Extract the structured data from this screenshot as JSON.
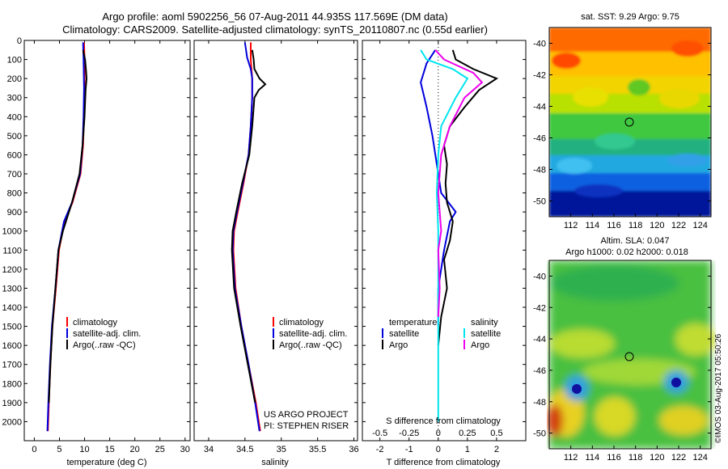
{
  "header": {
    "line1": "Argo profile: aoml 5902256_56 07-Aug-2011 44.935S 117.569E (DM data)",
    "line2": "Climatology: CARS2009. Satellite-adjusted climatology: synTS_20110807.nc (0.55d earlier)"
  },
  "colors": {
    "climatology": "#ff0000",
    "satellite": "#0000dd",
    "argo": "#000000",
    "cyan": "#00e5ee",
    "magenta": "#ee00ee"
  },
  "panel1": {
    "xlabel": "temperature (deg C)",
    "legend": [
      "climatology",
      "satellite-adj. clim.",
      "Argo(..raw -QC)"
    ]
  },
  "panel2": {
    "xlabel": "salinity",
    "legend": [
      "climatology",
      "satellite-adj. clim.",
      "Argo(..raw -QC)"
    ],
    "note1": "US ARGO PROJECT",
    "note2": "PI: STEPHEN RISER"
  },
  "panel3": {
    "top_label": "S difference from climatology",
    "xlabel": "T difference from climatology",
    "legend_t_title": "temperature",
    "legend_s_title": "salinity",
    "legend_sat": "satellite",
    "legend_argo": "Argo"
  },
  "map1": {
    "title": "sat. SST: 9.29 Argo: 9.75"
  },
  "map2": {
    "title1": "Altim. SLA: 0.047",
    "title2": "Argo h1000: 0.02 h2000: 0.018"
  },
  "stamp": "©IMOS 03-Aug-2017 05:50:26",
  "chart_data": [
    {
      "type": "line",
      "title": "",
      "xlabel": "temperature (deg C)",
      "ylabel": "",
      "xlim": [
        -2,
        31
      ],
      "ylim": [
        2100,
        0
      ],
      "x_ticks": [
        0,
        5,
        10,
        15,
        20,
        25,
        30
      ],
      "y_ticks": [
        0,
        100,
        200,
        300,
        400,
        500,
        600,
        700,
        800,
        900,
        1000,
        1100,
        1200,
        1300,
        1400,
        1500,
        1600,
        1700,
        1800,
        1900,
        2000
      ],
      "series": [
        {
          "name": "climatology",
          "color": "#ff0000",
          "points": [
            [
              9.9,
              10
            ],
            [
              10.0,
              100
            ],
            [
              10.0,
              250
            ],
            [
              9.9,
              400
            ],
            [
              9.7,
              550
            ],
            [
              9.2,
              700
            ],
            [
              7.6,
              850
            ],
            [
              6.0,
              950
            ],
            [
              4.9,
              1100
            ],
            [
              4.3,
              1300
            ],
            [
              3.6,
              1500
            ],
            [
              3.2,
              1700
            ],
            [
              2.9,
              1900
            ],
            [
              2.7,
              2050
            ]
          ]
        },
        {
          "name": "satellite-adj. clim.",
          "color": "#0000dd",
          "points": [
            [
              9.7,
              10
            ],
            [
              9.8,
              100
            ],
            [
              9.9,
              250
            ],
            [
              9.8,
              400
            ],
            [
              9.6,
              550
            ],
            [
              9.1,
              700
            ],
            [
              7.5,
              850
            ],
            [
              5.9,
              950
            ],
            [
              4.8,
              1100
            ],
            [
              4.2,
              1300
            ],
            [
              3.5,
              1500
            ],
            [
              3.1,
              1700
            ],
            [
              2.8,
              1900
            ],
            [
              2.6,
              2050
            ]
          ]
        },
        {
          "name": "Argo(..raw -QC)",
          "color": "#000000",
          "points": [
            [
              9.7,
              50
            ],
            [
              10.1,
              100
            ],
            [
              10.3,
              160
            ],
            [
              10.4,
              200
            ],
            [
              10.2,
              260
            ],
            [
              10.0,
              400
            ],
            [
              9.6,
              550
            ],
            [
              9.0,
              700
            ],
            [
              7.5,
              850
            ],
            [
              5.7,
              1000
            ],
            [
              4.8,
              1100
            ],
            [
              4.2,
              1300
            ],
            [
              3.6,
              1500
            ],
            [
              3.2,
              1700
            ],
            [
              2.9,
              1900
            ]
          ]
        }
      ]
    },
    {
      "type": "line",
      "title": "",
      "xlabel": "salinity",
      "ylabel": "",
      "xlim": [
        33.8,
        36.05
      ],
      "ylim": [
        2100,
        0
      ],
      "x_ticks": [
        34,
        34.5,
        35,
        35.5,
        36
      ],
      "series": [
        {
          "name": "climatology",
          "color": "#ff0000",
          "points": [
            [
              34.58,
              10
            ],
            [
              34.58,
              100
            ],
            [
              34.6,
              200
            ],
            [
              34.6,
              300
            ],
            [
              34.58,
              450
            ],
            [
              34.55,
              600
            ],
            [
              34.48,
              750
            ],
            [
              34.4,
              900
            ],
            [
              34.35,
              1000
            ],
            [
              34.34,
              1100
            ],
            [
              34.37,
              1300
            ],
            [
              34.45,
              1500
            ],
            [
              34.55,
              1700
            ],
            [
              34.65,
              1900
            ],
            [
              34.71,
              2050
            ]
          ]
        },
        {
          "name": "satellite-adj. clim.",
          "color": "#0000dd",
          "points": [
            [
              34.5,
              10
            ],
            [
              34.53,
              90
            ],
            [
              34.58,
              150
            ],
            [
              34.6,
              200
            ],
            [
              34.6,
              300
            ],
            [
              34.58,
              450
            ],
            [
              34.55,
              600
            ],
            [
              34.47,
              750
            ],
            [
              34.39,
              900
            ],
            [
              34.34,
              1000
            ],
            [
              34.33,
              1100
            ],
            [
              34.36,
              1300
            ],
            [
              34.45,
              1500
            ],
            [
              34.55,
              1700
            ],
            [
              34.64,
              1900
            ],
            [
              34.7,
              2050
            ]
          ]
        },
        {
          "name": "Argo(..raw -QC)",
          "color": "#000000",
          "points": [
            [
              34.6,
              50
            ],
            [
              34.62,
              100
            ],
            [
              34.63,
              150
            ],
            [
              34.7,
              200
            ],
            [
              34.78,
              230
            ],
            [
              34.69,
              260
            ],
            [
              34.63,
              300
            ],
            [
              34.6,
              450
            ],
            [
              34.56,
              600
            ],
            [
              34.46,
              750
            ],
            [
              34.38,
              900
            ],
            [
              34.33,
              1000
            ],
            [
              34.32,
              1100
            ],
            [
              34.35,
              1300
            ],
            [
              34.44,
              1500
            ],
            [
              34.54,
              1700
            ],
            [
              34.64,
              1900
            ]
          ]
        }
      ]
    },
    {
      "type": "line",
      "title": "",
      "xlabel": "T difference from climatology",
      "ylabel": "",
      "xlim": [
        -2.6,
        3.0
      ],
      "ylim": [
        2100,
        0
      ],
      "x_ticks_T": [
        -2,
        -1,
        0,
        1,
        2
      ],
      "x_ticks_S": [
        -0.5,
        -0.25,
        0,
        0.25,
        0.5
      ],
      "series": [
        {
          "name": "temperature satellite",
          "color": "#0000dd",
          "points": [
            [
              -0.1,
              50
            ],
            [
              -0.4,
              120
            ],
            [
              -0.6,
              220
            ],
            [
              -0.4,
              350
            ],
            [
              -0.2,
              500
            ],
            [
              -0.05,
              650
            ],
            [
              0.1,
              800
            ],
            [
              0.6,
              900
            ],
            [
              0.4,
              950
            ],
            [
              0.2,
              1100
            ],
            [
              0.0,
              1300
            ],
            [
              0.0,
              1500
            ]
          ]
        },
        {
          "name": "temperature Argo",
          "color": "#000000",
          "points": [
            [
              0.5,
              50
            ],
            [
              0.6,
              100
            ],
            [
              1.2,
              150
            ],
            [
              2.0,
              200
            ],
            [
              1.4,
              260
            ],
            [
              0.9,
              350
            ],
            [
              0.4,
              450
            ],
            [
              0.2,
              550
            ],
            [
              0.3,
              650
            ],
            [
              0.25,
              750
            ],
            [
              0.3,
              850
            ],
            [
              0.5,
              950
            ],
            [
              0.4,
              1050
            ],
            [
              0.2,
              1150
            ],
            [
              0.3,
              1300
            ],
            [
              0.1,
              1450
            ],
            [
              0.0,
              1600
            ]
          ]
        },
        {
          "name": "salinity satellite",
          "color": "#00e5ee",
          "points": [
            [
              -0.6,
              50
            ],
            [
              -0.4,
              100
            ],
            [
              0.5,
              150
            ],
            [
              1.0,
              200
            ],
            [
              0.6,
              300
            ],
            [
              0.1,
              450
            ],
            [
              0.0,
              600
            ],
            [
              -0.05,
              800
            ],
            [
              0.0,
              1000
            ],
            [
              0.0,
              1200
            ],
            [
              0.0,
              1500
            ],
            [
              0.0,
              1800
            ],
            [
              0.0,
              2000
            ]
          ]
        },
        {
          "name": "salinity Argo",
          "color": "#ee00ee",
          "points": [
            [
              -0.1,
              50
            ],
            [
              0.2,
              100
            ],
            [
              1.2,
              170
            ],
            [
              1.5,
              220
            ],
            [
              0.9,
              300
            ],
            [
              0.4,
              450
            ],
            [
              0.1,
              600
            ],
            [
              0.0,
              800
            ],
            [
              0.1,
              1000
            ],
            [
              0.0,
              1100
            ],
            [
              0.05,
              1300
            ],
            [
              0.0,
              1450
            ]
          ]
        }
      ]
    },
    {
      "type": "heatmap",
      "title": "sat. SST: 9.29 Argo: 9.75",
      "xlim": [
        110,
        125
      ],
      "ylim": [
        -51,
        -39
      ],
      "x_ticks": [
        112,
        114,
        116,
        118,
        120,
        122,
        124
      ],
      "y_ticks": [
        -40,
        -42,
        -44,
        -46,
        -48,
        -50
      ],
      "marker": [
        117.569,
        -44.935
      ]
    },
    {
      "type": "heatmap",
      "title": "Altim. SLA: 0.047",
      "xlim": [
        110,
        125
      ],
      "ylim": [
        -51,
        -39
      ],
      "x_ticks": [
        112,
        114,
        116,
        118,
        120,
        122,
        124
      ],
      "y_ticks": [
        -40,
        -42,
        -44,
        -46,
        -48,
        -50
      ],
      "marker": [
        117.569,
        -44.935
      ]
    }
  ]
}
